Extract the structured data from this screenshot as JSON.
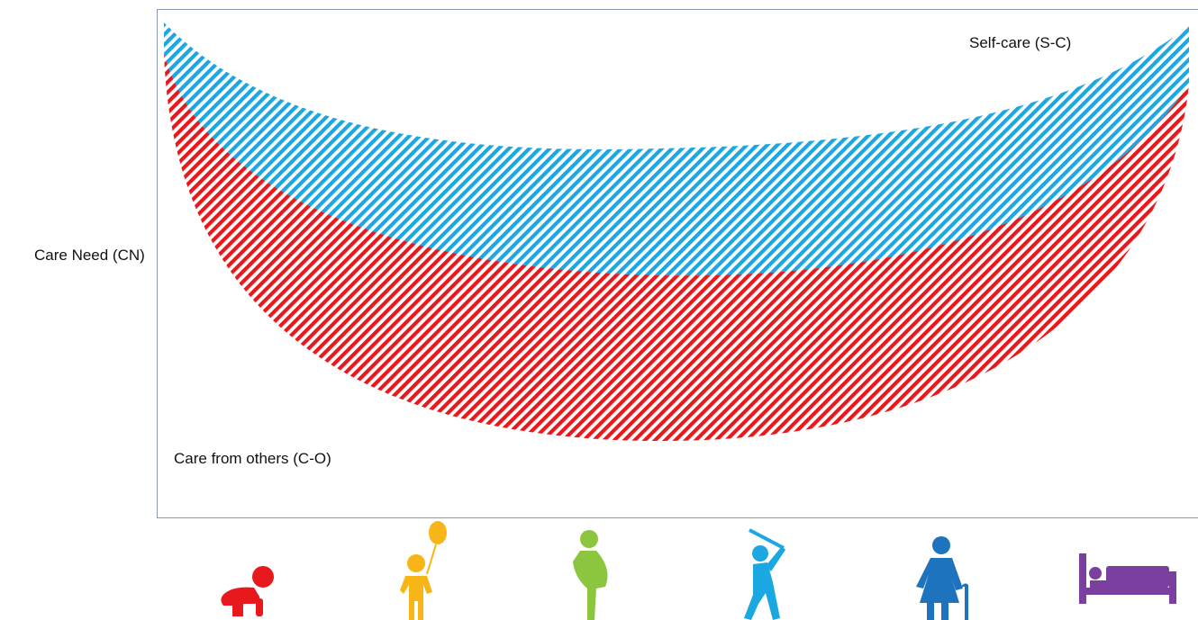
{
  "axis": {
    "y_label": "Care Need (CN)"
  },
  "regions": {
    "self_care": {
      "label": "Self-care (S-C)",
      "color": "#1BA7E1"
    },
    "care_from_others": {
      "label": "Care from others (C-O)",
      "color": "#E8191C"
    }
  },
  "life_stages": [
    {
      "name": "crawling-baby-icon",
      "color": "#E8191C"
    },
    {
      "name": "child-with-balloon-icon",
      "color": "#F7B517"
    },
    {
      "name": "pregnant-woman-icon",
      "color": "#8CC63F"
    },
    {
      "name": "adult-golfer-icon",
      "color": "#1BA7E1"
    },
    {
      "name": "elderly-woman-with-cane-icon",
      "color": "#1E73BE"
    },
    {
      "name": "bedridden-person-icon",
      "color": "#7B3FA0"
    }
  ]
}
